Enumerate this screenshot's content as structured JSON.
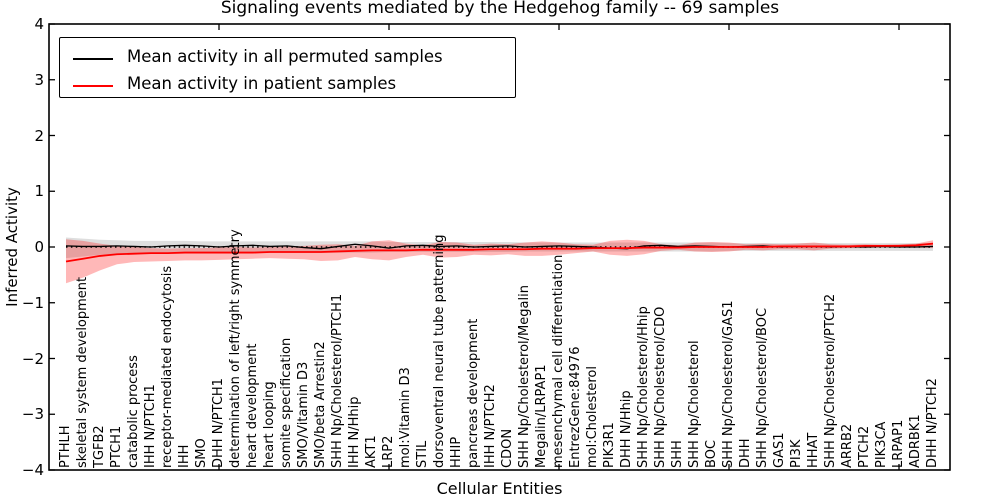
{
  "title": "Signaling events mediated by the Hedgehog family -- 69 samples",
  "legend": {
    "items": [
      {
        "label": "Mean activity in all permuted samples",
        "color": "#000000"
      },
      {
        "label": "Mean activity in patient samples",
        "color": "#ff0000"
      }
    ]
  },
  "axes": {
    "ylabel": "Inferred Activity",
    "xlabel": "Cellular Entities",
    "ytick_labels": [
      "4",
      "3",
      "2",
      "1",
      "0",
      "−1",
      "−2",
      "−3",
      "−4"
    ],
    "ytick_values": [
      4,
      3,
      2,
      1,
      0,
      -1,
      -2,
      -3,
      -4
    ],
    "xtick_values": [
      10,
      20,
      30,
      40,
      50
    ]
  },
  "chart_data": {
    "type": "line",
    "title": "Signaling events mediated by the Hedgehog family -- 69 samples",
    "xlabel": "Cellular Entities",
    "ylabel": "Inferred Activity",
    "ylim": [
      -4,
      4
    ],
    "xlim": [
      0,
      53
    ],
    "grid": false,
    "legend_position": "upper left",
    "zero_line": {
      "style": "dotted",
      "color": "#000000"
    },
    "categories": [
      "PTHLH",
      "skeletal system development",
      "TGFB2",
      "PTCH1",
      "catabolic process",
      "IHH N/PTCH1",
      "receptor-mediated endocytosis",
      "IHH",
      "SMO",
      "DHH N/PTCH1",
      "determination of left/right symmetry",
      "heart development",
      "heart looping",
      "somite specification",
      "SMO/Vitamin D3",
      "SMO/beta Arrestin2",
      "SHH Np/Cholesterol/PTCH1",
      "IHH N/Hhip",
      "AKT1",
      "LRP2",
      "mol:Vitamin D3",
      "STIL",
      "dorsoventral neural tube patterning",
      "HHIP",
      "pancreas development",
      "IHH N/PTCH2",
      "CDON",
      "SHH Np/Cholesterol/Megalin",
      "Megalin/LRPAP1",
      "mesenchymal cell differentiation",
      "EntrezGene:84976",
      "mol:Cholesterol",
      "PIK3R1",
      "DHH N/Hhip",
      "SHH Np/Cholesterol/Hhip",
      "SHH Np/Cholesterol/CDO",
      "SHH",
      "SHH Np/Cholesterol",
      "BOC",
      "SHH Np/Cholesterol/GAS1",
      "DHH",
      "SHH Np/Cholesterol/BOC",
      "GAS1",
      "PI3K",
      "HHAT",
      "SHH Np/Cholesterol/PTCH2",
      "ARRB2",
      "PTCH2",
      "PIK3CA",
      "LRPAP1",
      "ADRBK1",
      "DHH N/PTCH2"
    ],
    "series": [
      {
        "name": "Mean activity in all permuted samples",
        "color": "#000000",
        "width": 1.3,
        "values": [
          0.02,
          0.01,
          0.01,
          0.02,
          0.01,
          0.0,
          0.02,
          0.03,
          0.02,
          0.0,
          0.02,
          0.03,
          0.01,
          0.02,
          -0.01,
          -0.03,
          0.01,
          0.05,
          0.02,
          -0.02,
          0.02,
          0.03,
          0.01,
          0.02,
          0.0,
          0.01,
          0.02,
          0.0,
          0.01,
          0.02,
          0.01,
          0.0,
          -0.02,
          -0.03,
          0.02,
          0.03,
          0.01,
          0.02,
          0.01,
          0.0,
          0.01,
          0.02,
          0.0,
          0.01,
          0.01,
          0.0,
          0.01,
          0.0,
          0.01,
          0.0,
          0.0,
          0.01
        ]
      },
      {
        "name": "Mean activity in patient samples",
        "color": "#ff0000",
        "width": 1.8,
        "values": [
          -0.26,
          -0.21,
          -0.16,
          -0.13,
          -0.12,
          -0.11,
          -0.11,
          -0.1,
          -0.1,
          -0.1,
          -0.1,
          -0.1,
          -0.09,
          -0.09,
          -0.09,
          -0.09,
          -0.08,
          -0.07,
          -0.06,
          -0.06,
          -0.06,
          -0.05,
          -0.05,
          -0.05,
          -0.05,
          -0.04,
          -0.04,
          -0.04,
          -0.03,
          -0.03,
          -0.03,
          -0.02,
          -0.02,
          -0.02,
          -0.01,
          -0.01,
          -0.01,
          0.0,
          0.0,
          0.0,
          0.0,
          0.0,
          0.01,
          0.01,
          0.01,
          0.01,
          0.01,
          0.02,
          0.02,
          0.02,
          0.03,
          0.06
        ]
      }
    ],
    "bands": [
      {
        "name": "permuted-std-band",
        "color": "rgba(0,0,0,0.13)",
        "upper": [
          0.17,
          0.15,
          0.13,
          0.12,
          0.11,
          0.11,
          0.11,
          0.11,
          0.1,
          0.1,
          0.1,
          0.1,
          0.1,
          0.1,
          0.1,
          0.1,
          0.1,
          0.1,
          0.1,
          0.09,
          0.09,
          0.09,
          0.09,
          0.09,
          0.09,
          0.09,
          0.09,
          0.08,
          0.08,
          0.08,
          0.08,
          0.08,
          0.08,
          0.08,
          0.08,
          0.08,
          0.08,
          0.08,
          0.08,
          0.07,
          0.07,
          0.07,
          0.07,
          0.07,
          0.07,
          0.07,
          0.07,
          0.07,
          0.07,
          0.07,
          0.07,
          0.07
        ],
        "lower": [
          -0.2,
          -0.17,
          -0.14,
          -0.12,
          -0.11,
          -0.11,
          -0.11,
          -0.11,
          -0.1,
          -0.1,
          -0.1,
          -0.1,
          -0.1,
          -0.1,
          -0.1,
          -0.1,
          -0.1,
          -0.1,
          -0.1,
          -0.09,
          -0.09,
          -0.09,
          -0.09,
          -0.09,
          -0.09,
          -0.09,
          -0.09,
          -0.08,
          -0.08,
          -0.08,
          -0.08,
          -0.08,
          -0.08,
          -0.08,
          -0.08,
          -0.08,
          -0.08,
          -0.08,
          -0.08,
          -0.07,
          -0.07,
          -0.07,
          -0.07,
          -0.07,
          -0.07,
          -0.07,
          -0.07,
          -0.07,
          -0.07,
          -0.07,
          -0.07,
          -0.07
        ]
      },
      {
        "name": "patient-std-band",
        "color": "rgba(255,0,0,0.28)",
        "upper": [
          0.14,
          0.11,
          0.06,
          0.02,
          0.0,
          -0.02,
          -0.03,
          -0.02,
          -0.02,
          -0.01,
          0.0,
          -0.01,
          0.0,
          0.01,
          0.02,
          0.04,
          0.05,
          0.02,
          0.1,
          0.12,
          0.06,
          0.03,
          0.09,
          0.08,
          0.04,
          0.06,
          0.05,
          0.08,
          0.1,
          0.08,
          0.05,
          0.04,
          0.11,
          0.13,
          0.11,
          0.05,
          0.03,
          0.08,
          0.09,
          0.08,
          0.05,
          0.06,
          0.05,
          0.06,
          0.08,
          0.05,
          0.04,
          0.05,
          0.04,
          0.05,
          0.06,
          0.12
        ],
        "lower": [
          -0.65,
          -0.55,
          -0.42,
          -0.31,
          -0.27,
          -0.26,
          -0.25,
          -0.24,
          -0.24,
          -0.23,
          -0.22,
          -0.21,
          -0.2,
          -0.21,
          -0.22,
          -0.25,
          -0.24,
          -0.18,
          -0.22,
          -0.24,
          -0.18,
          -0.14,
          -0.19,
          -0.18,
          -0.14,
          -0.15,
          -0.13,
          -0.16,
          -0.16,
          -0.14,
          -0.11,
          -0.08,
          -0.14,
          -0.16,
          -0.13,
          -0.07,
          -0.05,
          -0.08,
          -0.09,
          -0.08,
          -0.05,
          -0.06,
          -0.04,
          -0.04,
          -0.06,
          -0.03,
          -0.02,
          -0.02,
          -0.01,
          -0.01,
          -0.01,
          -0.02
        ]
      }
    ],
    "samples_count": 69
  }
}
